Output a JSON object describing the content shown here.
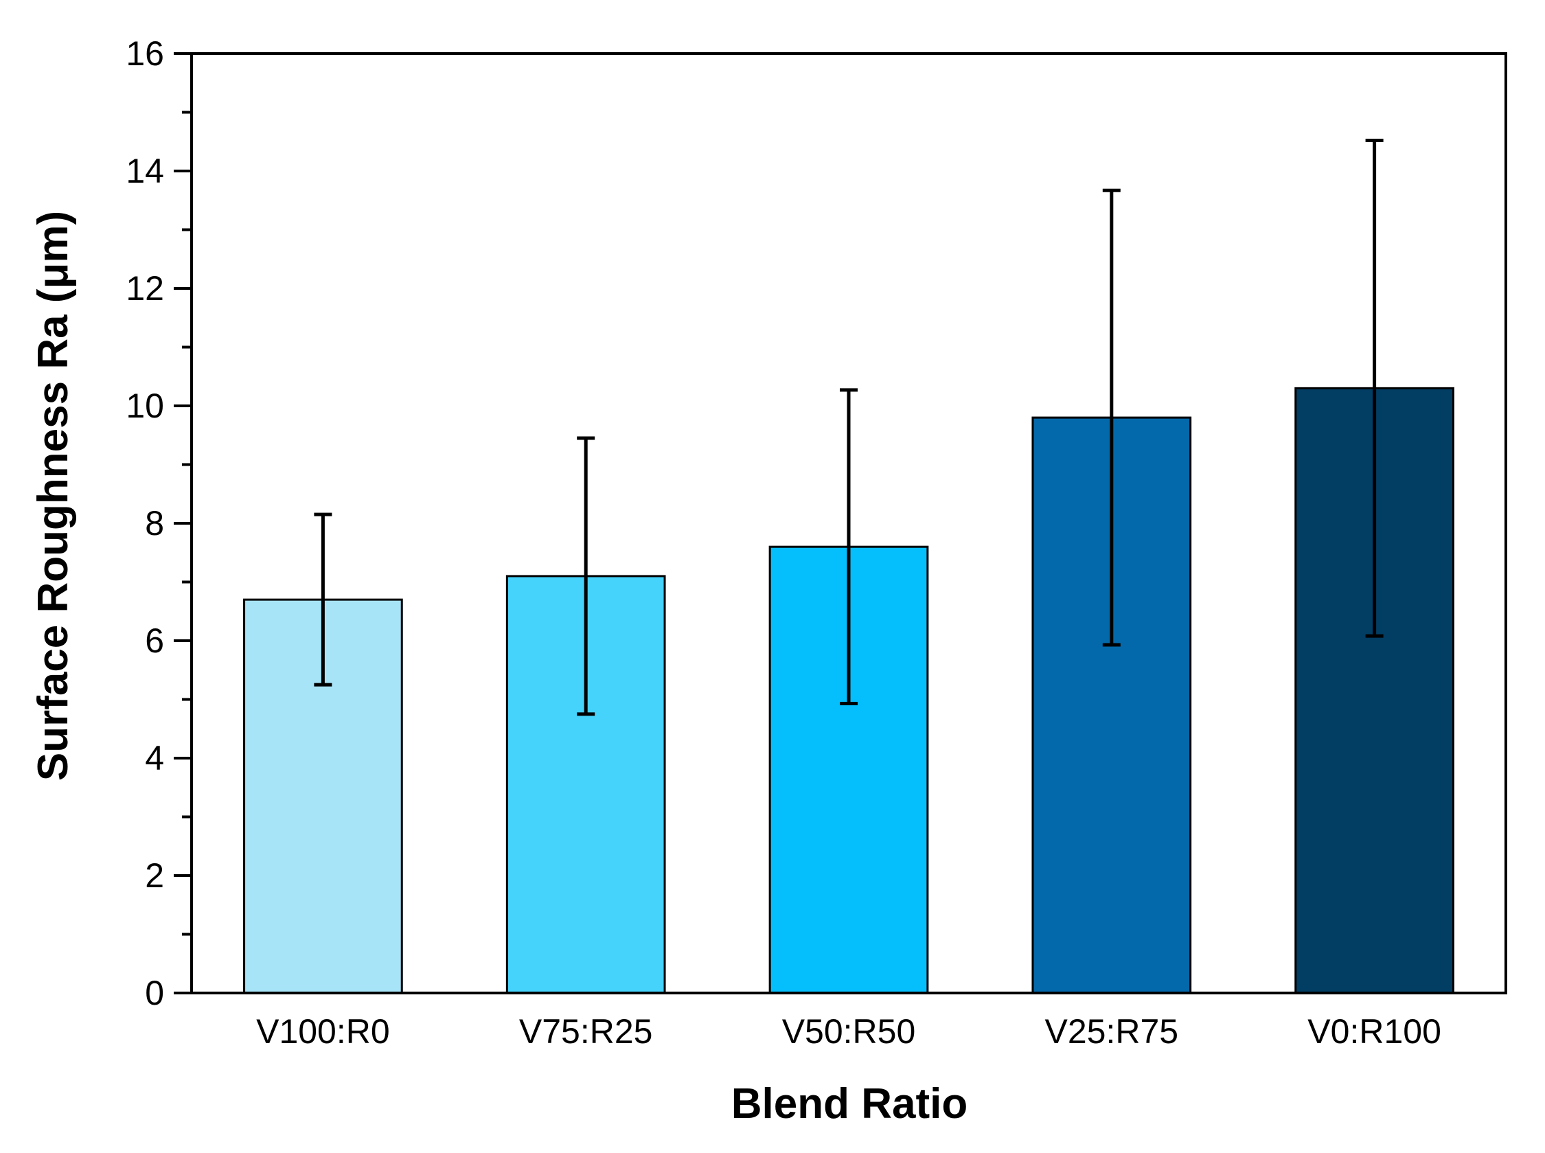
{
  "chart_data": {
    "type": "bar",
    "title": "",
    "xlabel": "Blend Ratio",
    "ylabel": "Surface Roughness Ra (μm)",
    "categories": [
      "V100:R0",
      "V75:R25",
      "V50:R50",
      "V25:R75",
      "V0:R100"
    ],
    "values": [
      6.7,
      7.1,
      7.6,
      9.8,
      10.3
    ],
    "error_upper": [
      8.15,
      9.45,
      10.27,
      13.67,
      14.52
    ],
    "error_lower": [
      5.25,
      4.75,
      4.93,
      5.93,
      6.08
    ],
    "colors": [
      "#a8e4f8",
      "#45d2fb",
      "#04bffb",
      "#0469aa",
      "#023d63"
    ],
    "ylim": [
      0,
      16
    ],
    "yticks": [
      0,
      2,
      4,
      6,
      8,
      10,
      12,
      14,
      16
    ],
    "grid": false,
    "legend": "none"
  }
}
